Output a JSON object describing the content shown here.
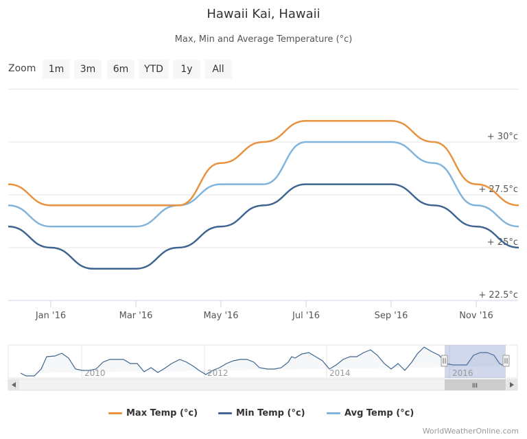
{
  "chart_title": "Hawaii Kai, Hawaii",
  "chart_subtitle": "Max, Min and Average Temperature (°c)",
  "zoom": {
    "label": "Zoom",
    "buttons": [
      {
        "label": "1m",
        "state": "disabled"
      },
      {
        "label": "3m",
        "state": "disabled"
      },
      {
        "label": "6m",
        "state": "normal"
      },
      {
        "label": "YTD",
        "state": "normal"
      },
      {
        "label": "1y",
        "state": "selected"
      },
      {
        "label": "All",
        "state": "normal"
      }
    ]
  },
  "navigator": {
    "labels": [
      "2010",
      "2012",
      "2014",
      "2016"
    ],
    "scrollbar_grip": "III"
  },
  "credit": "WorldWeatherOnline.com",
  "colors": {
    "max": "#e8913e",
    "min": "#3e648f",
    "avg": "#80b4dc"
  },
  "chart_data": {
    "type": "line",
    "title": "Hawaii Kai, Hawaii",
    "subtitle": "Max, Min and Average Temperature (°c)",
    "x_tick_labels": [
      "Jan '16",
      "Mar '16",
      "May '16",
      "Jul '16",
      "Sep '16",
      "Nov '16"
    ],
    "y_tick_labels": [
      "+ 22.5°c",
      "+ 25°c",
      "+ 27.5°c",
      "+ 30°c"
    ],
    "y_ticks": [
      22.5,
      25,
      27.5,
      30
    ],
    "ylim": [
      22.5,
      32.5
    ],
    "x": [
      "2015-12",
      "2016-01",
      "2016-02",
      "2016-03",
      "2016-04",
      "2016-05",
      "2016-06",
      "2016-07",
      "2016-08",
      "2016-09",
      "2016-10",
      "2016-11",
      "2016-12"
    ],
    "series": [
      {
        "name": "Max Temp (°c)",
        "key": "max",
        "values": [
          28,
          27,
          27,
          27,
          27,
          29,
          30,
          31,
          31,
          31,
          30,
          28,
          27
        ]
      },
      {
        "name": "Min Temp (°c)",
        "key": "min",
        "values": [
          26,
          25,
          24,
          24,
          25,
          26,
          27,
          28,
          28,
          28,
          27,
          26,
          25
        ]
      },
      {
        "name": "Avg Temp (°c)",
        "key": "avg",
        "values": [
          27,
          26,
          26,
          26,
          27,
          28,
          28,
          30,
          30,
          30,
          29,
          27,
          26
        ]
      }
    ],
    "grid": true,
    "legend_position": "bottom"
  }
}
